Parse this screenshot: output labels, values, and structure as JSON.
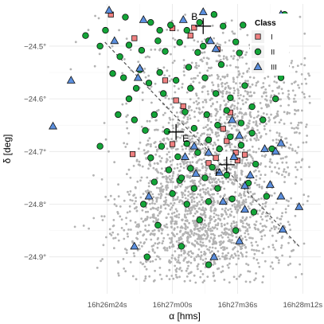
{
  "chart_data": {
    "type": "scatter",
    "xlabel": "α [hms]",
    "ylabel": "δ [deg]",
    "x_units": "RA (seconds offset from 16h27m00s)",
    "x_reversed": true,
    "xlim": [
      -82,
      68
    ],
    "ylim": [
      -24.97,
      -24.42
    ],
    "grid": true,
    "x_ticks": [
      {
        "value": -72,
        "label": "16h28m12s"
      },
      {
        "value": -36,
        "label": "16h27m36s"
      },
      {
        "value": 0,
        "label": "16h27m00s"
      },
      {
        "value": 36,
        "label": "16h26m24s"
      }
    ],
    "y_ticks": [
      {
        "value": -24.5,
        "label": "−24.5°"
      },
      {
        "value": -24.6,
        "label": "−24.6°"
      },
      {
        "value": -24.7,
        "label": "−24.7°"
      },
      {
        "value": -24.8,
        "label": "−24.8°"
      },
      {
        "value": -24.9,
        "label": "−24.9°"
      }
    ],
    "background_points": {
      "name": "background",
      "color": "#b3b3b3"
    },
    "reference_line": {
      "from": [
        -70,
        -24.88
      ],
      "to": [
        38,
        -24.49
      ],
      "style": "dashed",
      "color": "#555555"
    },
    "annotations": [
      {
        "label": "B",
        "x": -17,
        "y": -24.462
      },
      {
        "label": "E",
        "x": -2,
        "y": -24.663
      },
      {
        "label": "F",
        "x": -30,
        "y": -24.725
      }
    ],
    "legend": {
      "title": "Class",
      "placement": "top-right",
      "entries": [
        "I",
        "II",
        "III"
      ]
    },
    "series": [
      {
        "name": "I",
        "marker": "square",
        "color": "#f08080",
        "points": [
          [
            34,
            -24.44
          ],
          [
            0,
            -24.466
          ],
          [
            21,
            -24.485
          ],
          [
            -10,
            -24.48
          ],
          [
            -12,
            -24.465
          ],
          [
            -25,
            -24.506
          ],
          [
            -52,
            -24.528
          ],
          [
            4,
            -24.565
          ],
          [
            -2,
            -24.603
          ],
          [
            -6,
            -24.614
          ],
          [
            -32,
            -24.626
          ],
          [
            -28,
            -24.657
          ],
          [
            -30,
            -24.68
          ],
          [
            -24,
            -24.712
          ],
          [
            -40,
            -24.706
          ],
          [
            -20,
            -24.722
          ],
          [
            -36,
            -24.717
          ],
          [
            -35,
            -24.702
          ],
          [
            22,
            -24.705
          ],
          [
            0,
            -24.686
          ]
        ]
      },
      {
        "name": "II",
        "marker": "circle",
        "color": "#13a538",
        "points": [
          [
            -60,
            -24.46
          ],
          [
            -49,
            -24.455
          ],
          [
            -39,
            -24.46
          ],
          [
            -28,
            -24.462
          ],
          [
            -23,
            -24.44
          ],
          [
            -15,
            -24.455
          ],
          [
            -8,
            -24.47
          ],
          [
            1,
            -24.46
          ],
          [
            12,
            -24.455
          ],
          [
            26,
            -24.445
          ],
          [
            37,
            -24.47
          ],
          [
            -62,
            -24.48
          ],
          [
            -45,
            -24.485
          ],
          [
            -35,
            -24.492
          ],
          [
            -20,
            -24.49
          ],
          [
            -4,
            -24.493
          ],
          [
            8,
            -24.49
          ],
          [
            24,
            -24.498
          ],
          [
            40,
            -24.5
          ],
          [
            -55,
            -24.505
          ],
          [
            -37,
            -24.513
          ],
          [
            -14,
            -24.512
          ],
          [
            4,
            -24.51
          ],
          [
            17,
            -24.508
          ],
          [
            29,
            -24.52
          ],
          [
            -48,
            -24.53
          ],
          [
            -27,
            -24.535
          ],
          [
            -9,
            -24.54
          ],
          [
            7,
            -24.55
          ],
          [
            18,
            -24.545
          ],
          [
            33,
            -24.552
          ],
          [
            -18,
            -24.56
          ],
          [
            -2,
            -24.565
          ],
          [
            13,
            -24.57
          ],
          [
            27,
            -24.56
          ],
          [
            -40,
            -24.575
          ],
          [
            -10,
            -24.58
          ],
          [
            5,
            -24.59
          ],
          [
            24,
            -24.6
          ],
          [
            -44,
            -24.615
          ],
          [
            -30,
            -24.622
          ],
          [
            -19,
            -24.63
          ],
          [
            -7,
            -24.625
          ],
          [
            10,
            -24.63
          ],
          [
            21,
            -24.64
          ],
          [
            -50,
            -24.64
          ],
          [
            -38,
            -24.646
          ],
          [
            -25,
            -24.65
          ],
          [
            -12,
            -24.656
          ],
          [
            3,
            -24.662
          ],
          [
            15,
            -24.66
          ],
          [
            -44,
            -24.665
          ],
          [
            -32,
            -24.672
          ],
          [
            -20,
            -24.678
          ],
          [
            -8,
            -24.685
          ],
          [
            6,
            -24.69
          ],
          [
            -55,
            -24.695
          ],
          [
            -38,
            -24.688
          ],
          [
            -26,
            -24.695
          ],
          [
            -14,
            -24.702
          ],
          [
            -3,
            -24.71
          ],
          [
            12,
            -24.712
          ],
          [
            -46,
            -24.724
          ],
          [
            -22,
            -24.73
          ],
          [
            -10,
            -24.732
          ],
          [
            2,
            -24.735
          ],
          [
            -30,
            -24.745
          ],
          [
            -18,
            -24.75
          ],
          [
            -4,
            -24.755
          ],
          [
            10,
            -24.758
          ],
          [
            -42,
            -24.76
          ],
          [
            -25,
            -24.77
          ],
          [
            -12,
            -24.77
          ],
          [
            0,
            -24.78
          ],
          [
            -52,
            -24.785
          ],
          [
            -33,
            -24.79
          ],
          [
            -20,
            -24.795
          ],
          [
            -8,
            -24.8
          ],
          [
            16,
            -24.8
          ],
          [
            -45,
            -24.815
          ],
          [
            -15,
            -24.83
          ],
          [
            8,
            -24.84
          ],
          [
            -35,
            -24.85
          ],
          [
            -5,
            -24.88
          ],
          [
            14,
            -24.9
          ],
          [
            -20,
            -24.915
          ],
          [
            48,
            -24.48
          ],
          [
            30,
            -24.63
          ],
          [
            40,
            -24.69
          ],
          [
            -32,
            -24.598
          ],
          [
            -60,
            -24.56
          ],
          [
            -57,
            -24.6
          ],
          [
            -5,
            -24.75
          ],
          [
            -62,
            -24.44
          ],
          [
            -24,
            -24.59
          ],
          [
            20,
            -24.58
          ],
          [
            7,
            -24.47
          ],
          [
            -17,
            -24.5
          ]
        ]
      },
      {
        "name": "III",
        "marker": "triangle",
        "color": "#5b8fde",
        "points": [
          [
            -60,
            -24.44
          ],
          [
            -17,
            -24.435
          ],
          [
            -6,
            -24.45
          ],
          [
            16,
            -24.45
          ],
          [
            35,
            -24.432
          ],
          [
            -21,
            -24.49
          ],
          [
            -24,
            -24.505
          ],
          [
            32,
            -24.49
          ],
          [
            56,
            -24.565
          ],
          [
            18,
            -24.542
          ],
          [
            -33,
            -24.64
          ],
          [
            -37,
            -24.67
          ],
          [
            -60,
            -24.684
          ],
          [
            -51,
            -24.695
          ],
          [
            -34,
            -24.71
          ],
          [
            -20,
            -24.702
          ],
          [
            -12,
            -24.69
          ],
          [
            -7,
            -24.71
          ],
          [
            -26,
            -24.74
          ],
          [
            -13,
            -24.742
          ],
          [
            -43,
            -24.745
          ],
          [
            -54,
            -24.763
          ],
          [
            -60,
            -24.785
          ],
          [
            -40,
            -24.81
          ],
          [
            -28,
            -24.795
          ],
          [
            -70,
            -24.805
          ],
          [
            -61,
            -24.848
          ],
          [
            -37,
            -24.87
          ],
          [
            13,
            -24.785
          ],
          [
            21,
            -24.88
          ],
          [
            -23,
            -24.9
          ],
          [
            66,
            -24.652
          ],
          [
            19,
            -24.56
          ],
          [
            -57,
            -24.7
          ],
          [
            -40,
            -24.765
          ]
        ]
      }
    ]
  }
}
